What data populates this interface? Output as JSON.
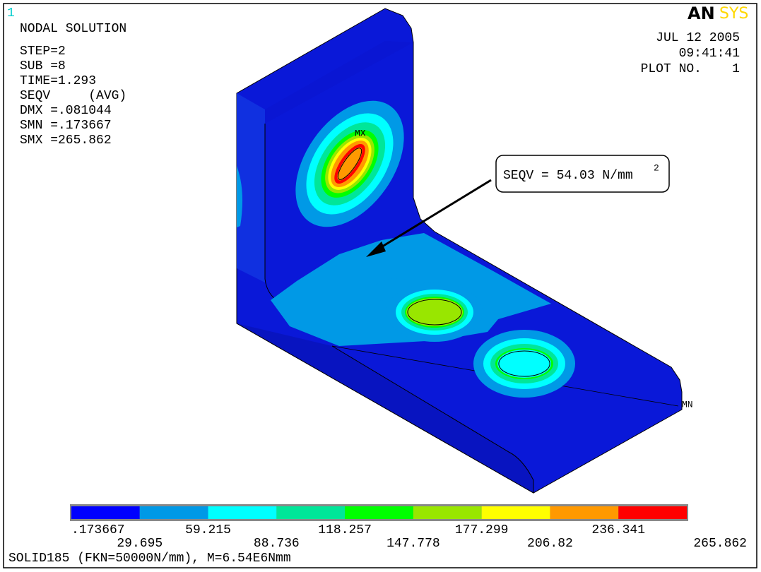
{
  "window_number": "1",
  "logo": {
    "part1": "AN",
    "part2": "SYS"
  },
  "header": {
    "title": "NODAL SOLUTION",
    "info_lines": [
      "STEP=2",
      "SUB =8",
      "TIME=1.293",
      "SEQV     (AVG)",
      "DMX =.081044",
      "SMN =.173667",
      "SMX =265.862"
    ],
    "date": "JUL 12 2005",
    "time": "09:41:41",
    "plot": "PLOT NO.    1"
  },
  "annotation": {
    "text": "SEQV = 54.03 N/mm",
    "superscript": "2"
  },
  "markers": {
    "max": "MX",
    "min": "MN"
  },
  "legend": {
    "colors": [
      "#0000ff",
      "#0099e6",
      "#00ffff",
      "#00e699",
      "#00ff00",
      "#99e600",
      "#ffff00",
      "#ff9900",
      "#ff0000"
    ],
    "labels": [
      ".173667",
      "29.695",
      "59.215",
      "88.736",
      "118.257",
      "147.778",
      "177.299",
      "206.82",
      "236.341",
      "265.862"
    ]
  },
  "footer": "SOLID185 (FKN=50000N/mm), M=6.54E6Nmm"
}
